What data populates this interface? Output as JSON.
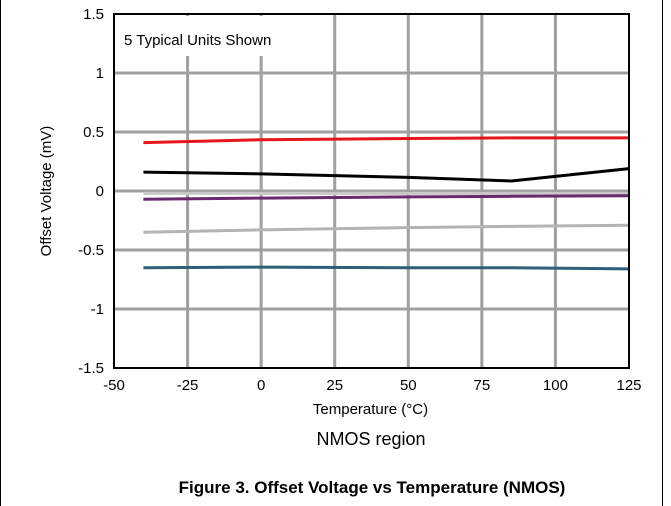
{
  "chart_data": {
    "type": "line",
    "title": "",
    "xlabel": "Temperature (°C)",
    "ylabel": "Offset Voltage (mV)",
    "xlim": [
      -50,
      125
    ],
    "ylim": [
      -1.5,
      1.5
    ],
    "xticks": [
      "-50",
      "-25",
      "0",
      "25",
      "50",
      "75",
      "100",
      "125"
    ],
    "yticks": [
      "1.5",
      "1",
      "0.5",
      "0",
      "-0.5",
      "-1",
      "-1.5"
    ],
    "grid": true,
    "annotation": "5 Typical Units Shown",
    "region_label": "NMOS region",
    "caption": "Figure 3. Offset Voltage vs Temperature (NMOS)",
    "series": [
      {
        "color": "#e8141c",
        "x": [
          -40,
          0,
          50,
          85,
          125
        ],
        "y": [
          0.41,
          0.435,
          0.445,
          0.45,
          0.45
        ]
      },
      {
        "color": "#000000",
        "x": [
          -40,
          0,
          50,
          85,
          125
        ],
        "y": [
          0.16,
          0.145,
          0.115,
          0.085,
          0.19
        ]
      },
      {
        "color": "#c8c8c8",
        "x": [
          -40,
          0,
          50,
          85,
          125
        ],
        "y": [
          -0.02,
          -0.02,
          -0.02,
          -0.02,
          -0.02
        ]
      },
      {
        "color": "#6a2a70",
        "x": [
          -40,
          0,
          50,
          85,
          125
        ],
        "y": [
          -0.07,
          -0.06,
          -0.05,
          -0.045,
          -0.04
        ]
      },
      {
        "color": "#b4b4b4",
        "x": [
          -40,
          0,
          50,
          85,
          125
        ],
        "y": [
          -0.35,
          -0.33,
          -0.31,
          -0.3,
          -0.29
        ]
      },
      {
        "color": "#2e5f78",
        "x": [
          -40,
          0,
          50,
          85,
          125
        ],
        "y": [
          -0.65,
          -0.645,
          -0.65,
          -0.65,
          -0.66
        ]
      }
    ]
  }
}
